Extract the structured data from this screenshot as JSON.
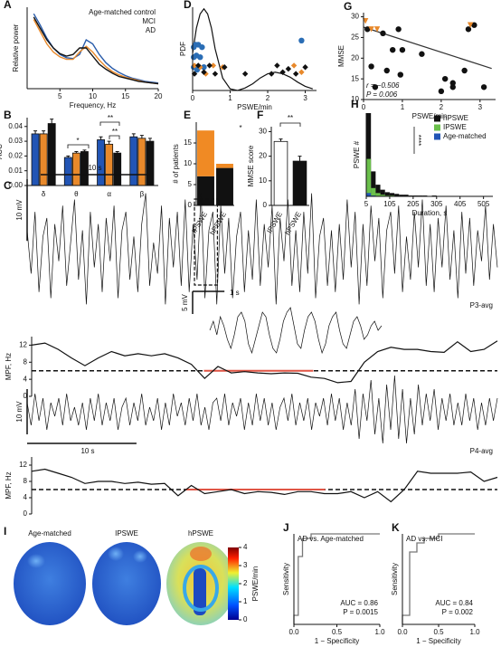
{
  "chart_data": [
    {
      "type": "line",
      "label": "A",
      "xlabel": "Frequency, Hz",
      "ylabel": "Relative power",
      "xlim": [
        0,
        20
      ],
      "ylim": [
        0,
        1
      ],
      "xticks": [
        5,
        10,
        15,
        20
      ],
      "x": [
        1,
        2,
        3,
        4,
        5,
        6,
        7,
        8,
        9,
        10,
        11,
        12,
        13,
        14,
        15,
        16,
        17,
        18,
        19,
        20
      ],
      "legend": "upper right",
      "series": [
        {
          "name": "Age-matched control",
          "color": "#2a5caa",
          "values": [
            0.92,
            0.78,
            0.62,
            0.5,
            0.42,
            0.38,
            0.37,
            0.42,
            0.6,
            0.55,
            0.42,
            0.32,
            0.25,
            0.2,
            0.16,
            0.13,
            0.11,
            0.09,
            0.08,
            0.07
          ]
        },
        {
          "name": "MCI",
          "color": "#e8892b",
          "values": [
            0.85,
            0.7,
            0.55,
            0.45,
            0.39,
            0.36,
            0.36,
            0.45,
            0.52,
            0.45,
            0.35,
            0.27,
            0.21,
            0.17,
            0.14,
            0.12,
            0.1,
            0.08,
            0.07,
            0.06
          ]
        },
        {
          "name": "AD",
          "color": "#111111",
          "values": [
            0.88,
            0.74,
            0.6,
            0.5,
            0.43,
            0.4,
            0.42,
            0.5,
            0.5,
            0.4,
            0.3,
            0.24,
            0.19,
            0.15,
            0.13,
            0.11,
            0.09,
            0.08,
            0.07,
            0.06
          ]
        }
      ]
    },
    {
      "type": "scatter",
      "label": "D",
      "xlabel": "PSWE/min",
      "ylabel": "PDF",
      "xlim": [
        0,
        3.3
      ],
      "ylim": [
        0,
        1
      ],
      "xticks": [
        0,
        1,
        2,
        3
      ],
      "series": [
        {
          "type": "line",
          "color": "#111111",
          "x": [
            0,
            0.1,
            0.2,
            0.3,
            0.4,
            0.5,
            0.6,
            0.8,
            1.0,
            1.2,
            1.4,
            1.6,
            1.8,
            2.0,
            2.2,
            2.4,
            2.6,
            2.8,
            3.0,
            3.2
          ],
          "values": [
            0.45,
            0.75,
            0.92,
            0.98,
            0.92,
            0.75,
            0.5,
            0.15,
            0.02,
            0.0,
            0.03,
            0.08,
            0.15,
            0.2,
            0.22,
            0.2,
            0.16,
            0.1,
            0.05,
            0.02
          ]
        },
        {
          "marker": "circle",
          "color": "#2a6db5",
          "x": [
            0.03,
            0.08,
            0.15,
            0.25,
            0.03,
            0.1,
            0.2,
            0.03,
            0.12,
            0.3,
            2.9
          ],
          "values": [
            0.52,
            0.55,
            0.55,
            0.52,
            0.4,
            0.42,
            0.4,
            0.28,
            0.25,
            0.28,
            0.6
          ]
        },
        {
          "marker": "diamond",
          "color": "#e8892b",
          "x": [
            0.05,
            0.2,
            0.35,
            0.55,
            0.8,
            2.7,
            2.9
          ],
          "values": [
            0.3,
            0.28,
            0.2,
            0.3,
            0.28,
            0.3,
            0.22
          ]
        },
        {
          "marker": "diamond",
          "color": "#111111",
          "x": [
            0.05,
            0.15,
            0.3,
            0.45,
            0.6,
            0.85,
            1.4,
            2.1,
            2.25,
            2.4,
            2.55,
            2.75,
            3.0
          ],
          "values": [
            0.2,
            0.3,
            0.22,
            0.3,
            0.2,
            0.28,
            0.2,
            0.2,
            0.3,
            0.22,
            0.26,
            0.2,
            0.28
          ]
        }
      ]
    },
    {
      "type": "scatter",
      "label": "G",
      "xlabel": "PSWE/min",
      "ylabel": "MMSE",
      "xlim": [
        0,
        3.4
      ],
      "ylim": [
        10,
        31
      ],
      "xticks": [
        0,
        1,
        2,
        3
      ],
      "yticks": [
        10,
        15,
        20,
        25,
        30
      ],
      "annotations": [
        "r = −0.506",
        "P = 0.006"
      ],
      "series": [
        {
          "type": "line",
          "color": "#333333",
          "x": [
            0,
            3.3
          ],
          "values": [
            27.5,
            17.5
          ]
        },
        {
          "marker": "circle",
          "color": "#111111",
          "x": [
            0.1,
            0.5,
            0.9,
            0.2,
            0.6,
            0.75,
            1.0,
            0.3,
            1.5,
            2.0,
            2.1,
            2.3,
            2.3,
            2.7,
            2.85,
            3.1,
            0.95,
            2.6
          ],
          "values": [
            27,
            26,
            27,
            18,
            17,
            22,
            22,
            13,
            21,
            12,
            15,
            14,
            13,
            27,
            28,
            13,
            16,
            17
          ]
        },
        {
          "marker": "triangle",
          "color": "#e8892b",
          "x": [
            0.05,
            0.35,
            0.2,
            2.75
          ],
          "values": [
            29,
            27,
            27,
            28
          ]
        }
      ]
    },
    {
      "type": "bar",
      "label": "B",
      "ylabel": "AUC",
      "categories": [
        "δ",
        "θ",
        "α",
        "β"
      ],
      "ylim": [
        0,
        0.046
      ],
      "yticks": [
        {
          "value": 0,
          "label": "0.00"
        },
        {
          "value": 0.01,
          "label": "0.01"
        },
        {
          "value": 0.02,
          "label": "0.02"
        },
        {
          "value": 0.03,
          "label": "0.03"
        },
        {
          "value": 0.04,
          "label": "0.04"
        }
      ],
      "annotations": [
        "*",
        "**",
        "**"
      ],
      "series": [
        {
          "color": "#2255b5",
          "values": [
            0.035,
            0.019,
            0.031,
            0.033
          ],
          "errors": [
            0.002,
            0.001,
            0.002,
            0.002
          ]
        },
        {
          "color": "#e8892b",
          "values": [
            0.035,
            0.022,
            0.028,
            0.032
          ],
          "errors": [
            0.002,
            0.001,
            0.002,
            0.002
          ]
        },
        {
          "color": "#111111",
          "values": [
            0.042,
            0.023,
            0.022,
            0.03
          ],
          "errors": [
            0.003,
            0.001,
            0.001,
            0.002
          ]
        }
      ]
    },
    {
      "type": "stacked_bar",
      "label": "E",
      "ylabel": "# of patients",
      "categories": [
        "IPSWE",
        "hPSWE"
      ],
      "ylim": [
        0,
        20
      ],
      "yticks": [
        0,
        5,
        10,
        15
      ],
      "annotations": [
        "*"
      ],
      "series": [
        {
          "color": "#111111",
          "values": [
            7,
            9
          ]
        },
        {
          "color": "#f08a24",
          "values": [
            11,
            1
          ]
        }
      ]
    },
    {
      "type": "bar",
      "label": "F",
      "ylabel": "MMSE score",
      "categories": [
        "IPSWE",
        "hPSWE"
      ],
      "ylim": [
        0,
        32
      ],
      "yticks": [
        0,
        10,
        20,
        30
      ],
      "annotations": [
        "**"
      ],
      "series": [
        {
          "colors": [
            "#ffffff",
            "#111111"
          ],
          "values": [
            26,
            18
          ],
          "errors": [
            1,
            2
          ]
        }
      ]
    },
    {
      "type": "histogram",
      "label": "H",
      "xlabel": "Duration, s",
      "ylabel": "PSWE #",
      "xlim": [
        5,
        545
      ],
      "ylim": [
        0,
        100
      ],
      "xticks": [
        5,
        105,
        205,
        305,
        405,
        505
      ],
      "bins": [
        5,
        25,
        45,
        65,
        85,
        105,
        125,
        145,
        165,
        185,
        205,
        225,
        245,
        265,
        285,
        305,
        325,
        345,
        365,
        385,
        405,
        425,
        445,
        465,
        485,
        505
      ],
      "annotations": [
        "****"
      ],
      "legend": "upper right",
      "series": [
        {
          "name": "hPSWE",
          "color": "#111111",
          "values": [
            100,
            30,
            14,
            8,
            5,
            4,
            3,
            2,
            2,
            1,
            1,
            1,
            1,
            0,
            1,
            0,
            0,
            0,
            0,
            0,
            0,
            0,
            0,
            0,
            0
          ]
        },
        {
          "name": "IPSWE",
          "color": "#6abf4b",
          "values": [
            45,
            10,
            4,
            2,
            1,
            1,
            0,
            0,
            0,
            0,
            0,
            0,
            0,
            0,
            0,
            0,
            0,
            0,
            0,
            0,
            0,
            0,
            0,
            0,
            0
          ]
        },
        {
          "name": "Age-matched",
          "color": "#2255b5",
          "values": [
            4,
            1,
            0,
            0,
            0,
            0,
            0,
            0,
            0,
            0,
            0,
            0,
            0,
            0,
            0,
            0,
            0,
            0,
            0,
            0,
            0,
            0,
            0,
            0,
            0
          ]
        }
      ]
    },
    {
      "type": "eeg",
      "label": "C",
      "name": "P3-avg",
      "color": "#111111",
      "xlim": [
        0,
        43
      ],
      "ylim": [
        -11,
        11
      ],
      "scalebar_x": 10,
      "scalebar_x_label": "10 s",
      "scalebar_y": 10,
      "scalebar_y_label": "10 mV",
      "zoom": [
        15.3,
        17.4
      ],
      "values": [
        3,
        -4,
        6,
        -7,
        2,
        5,
        -8,
        4,
        -2,
        7,
        -6,
        1,
        8,
        -5,
        3,
        -9,
        6,
        -3,
        4,
        -7,
        5,
        -2,
        7,
        -8,
        3,
        6,
        -5,
        2,
        -7,
        4,
        9,
        -6,
        1,
        -4,
        7,
        -9,
        5,
        -3,
        6,
        -6,
        8,
        -7,
        4,
        -5,
        9,
        -8,
        3,
        6,
        -9,
        7,
        -4,
        5,
        -8,
        2,
        6,
        -7,
        3,
        -5,
        8,
        -6,
        4,
        -3,
        7,
        -9,
        5,
        -2,
        8,
        -6,
        3,
        -7,
        6,
        -4,
        9,
        -8,
        2,
        5,
        -6,
        3,
        -7,
        4,
        -5,
        8,
        -3,
        6,
        -9,
        4,
        -6,
        7,
        -2,
        5,
        -8,
        3,
        6,
        -4,
        7,
        -7,
        2,
        -5,
        6,
        -3,
        8,
        -6,
        4,
        -7,
        5,
        -3,
        7,
        -5,
        3,
        -8,
        6,
        -4,
        5,
        -6,
        3,
        -2,
        7,
        -5,
        4,
        -3
      ]
    },
    {
      "type": "eeg",
      "color": "#111111",
      "xlim": [
        0,
        5.4
      ],
      "ylim": [
        -6,
        6
      ],
      "scalebar_x": 1,
      "scalebar_x_label": "1 s",
      "scalebar_y": 5,
      "scalebar_y_label": "5 mV",
      "values": [
        0,
        2,
        -1,
        3,
        1,
        -2,
        -4,
        -1,
        3,
        4,
        2,
        -3,
        -5,
        -2,
        1,
        4,
        3,
        -1,
        -4,
        -5,
        -2,
        2,
        4,
        5,
        1,
        -3,
        -4,
        0,
        3,
        4,
        2,
        -2,
        -5,
        -3,
        1,
        3,
        4,
        0,
        -3,
        -4,
        -1,
        2,
        3,
        1,
        -2,
        -1,
        1,
        2,
        0,
        1
      ]
    },
    {
      "type": "mpf",
      "ylabel": "MPF, Hz",
      "color": "#111111",
      "xlim": [
        0,
        43
      ],
      "ylim": [
        0,
        14
      ],
      "yticks": [
        0,
        4,
        8,
        12
      ],
      "threshold": 6,
      "highlight": [
        15.9,
        26.0
      ],
      "values": [
        12,
        12.5,
        11,
        9,
        7.2,
        9,
        10.5,
        9.5,
        10,
        9.5,
        10,
        9,
        7.5,
        4.2,
        7,
        5.5,
        5.8,
        5.5,
        5.3,
        5.5,
        5.4,
        4.5,
        4.2,
        3.2,
        3.5,
        8,
        10.5,
        11.5,
        11,
        11,
        10.5,
        10.3,
        12.8,
        10.5,
        11,
        13
      ]
    },
    {
      "type": "eeg",
      "name": "P4-avg",
      "color": "#111111",
      "xlim": [
        0,
        43
      ],
      "ylim": [
        -6,
        6
      ],
      "scalebar_x": 10,
      "scalebar_x_label": "10 s",
      "scalebar_y": 10,
      "scalebar_y_label": "10 mV",
      "values": [
        2,
        -3,
        4,
        -2,
        3,
        -4,
        2,
        -1,
        3,
        -3,
        4,
        -2,
        1,
        -3,
        2,
        -4,
        3,
        -2,
        4,
        -3,
        2,
        -2,
        3,
        -4,
        1,
        3,
        -3,
        2,
        -2,
        4,
        -3,
        1,
        -2,
        3,
        -4,
        2,
        -3,
        4,
        -1,
        2,
        -3,
        3,
        -2,
        4,
        -3,
        1,
        -4,
        2,
        3,
        -2,
        4,
        -3,
        2,
        -1,
        3,
        -4,
        2,
        -3,
        4,
        -2,
        3,
        -3,
        2,
        -4,
        1,
        3,
        -2,
        4,
        -3,
        2,
        -2,
        3,
        -4,
        2,
        -1,
        3,
        -3,
        4,
        -2,
        3,
        -4,
        2,
        -3,
        5,
        -6,
        4,
        -2,
        7,
        -5,
        3,
        -7,
        6,
        -4,
        8,
        -6,
        5,
        -7,
        3,
        -5,
        6,
        -3,
        4,
        -2,
        5,
        -4,
        3,
        -2,
        4,
        -3,
        2,
        -3,
        4,
        -2,
        3,
        -4,
        2,
        -3,
        3,
        -2,
        3
      ]
    },
    {
      "type": "mpf",
      "ylabel": "MPF, Hz",
      "color": "#111111",
      "xlim": [
        0,
        43
      ],
      "ylim": [
        0,
        14
      ],
      "yticks": [
        0,
        4,
        8,
        12
      ],
      "threshold": 6,
      "highlight": [
        14.2,
        27.1
      ],
      "values": [
        10.5,
        11,
        10,
        9,
        7.5,
        8,
        8,
        7.5,
        7.8,
        7.3,
        7.5,
        4.5,
        7,
        5,
        5.5,
        6,
        5,
        5.5,
        5.3,
        4.8,
        5.5,
        5.5,
        5,
        5,
        5.5,
        4,
        5.5,
        3,
        6,
        10.5,
        10,
        10,
        10,
        10.3,
        8,
        9
      ]
    },
    {
      "type": "topomap",
      "label": "I",
      "titles": [
        "Age-matched",
        "IPSWE",
        "hPSWE"
      ],
      "ylabel": "PSWE/min",
      "ylim": [
        0,
        4
      ],
      "yticks": [
        0,
        1,
        2,
        3,
        4
      ]
    },
    {
      "type": "roc",
      "label": "J",
      "title": "AD vs. Age-matched",
      "xlabel": "1 − Specificity",
      "ylabel": "Sensitivity",
      "xlim": [
        0,
        1
      ],
      "ylim": [
        0,
        1
      ],
      "xticks": [
        {
          "value": 0,
          "label": "0.0"
        },
        {
          "value": 0.5,
          "label": "0.5"
        },
        {
          "value": 1,
          "label": "1.0"
        }
      ],
      "annotations": [
        "AUC = 0.86",
        "P = 0.0015"
      ],
      "color": "#777777",
      "x": [
        0,
        0,
        0.05,
        0.05,
        0.1,
        0.1,
        0.2,
        0.2,
        1
      ],
      "values": [
        0,
        0.1,
        0.1,
        0.75,
        0.75,
        0.95,
        0.95,
        1,
        1
      ]
    },
    {
      "type": "roc",
      "label": "K",
      "title": "AD vs. MCI",
      "xlabel": "1 − Specificity",
      "ylabel": "Sensitivity",
      "xlim": [
        0,
        1
      ],
      "ylim": [
        0,
        1
      ],
      "xticks": [
        {
          "value": 0,
          "label": "0.0"
        },
        {
          "value": 0.5,
          "label": "0.5"
        },
        {
          "value": 1,
          "label": "1.0"
        }
      ],
      "annotations": [
        "AUC = 0.84",
        "P = 0.002"
      ],
      "color": "#777777",
      "x": [
        0,
        0,
        0.1,
        0.1,
        0.2,
        0.2,
        0.3,
        0.3,
        0.5,
        0.5,
        1
      ],
      "values": [
        0,
        0.1,
        0.1,
        0.8,
        0.8,
        0.9,
        0.9,
        0.95,
        0.95,
        1,
        1
      ]
    }
  ]
}
